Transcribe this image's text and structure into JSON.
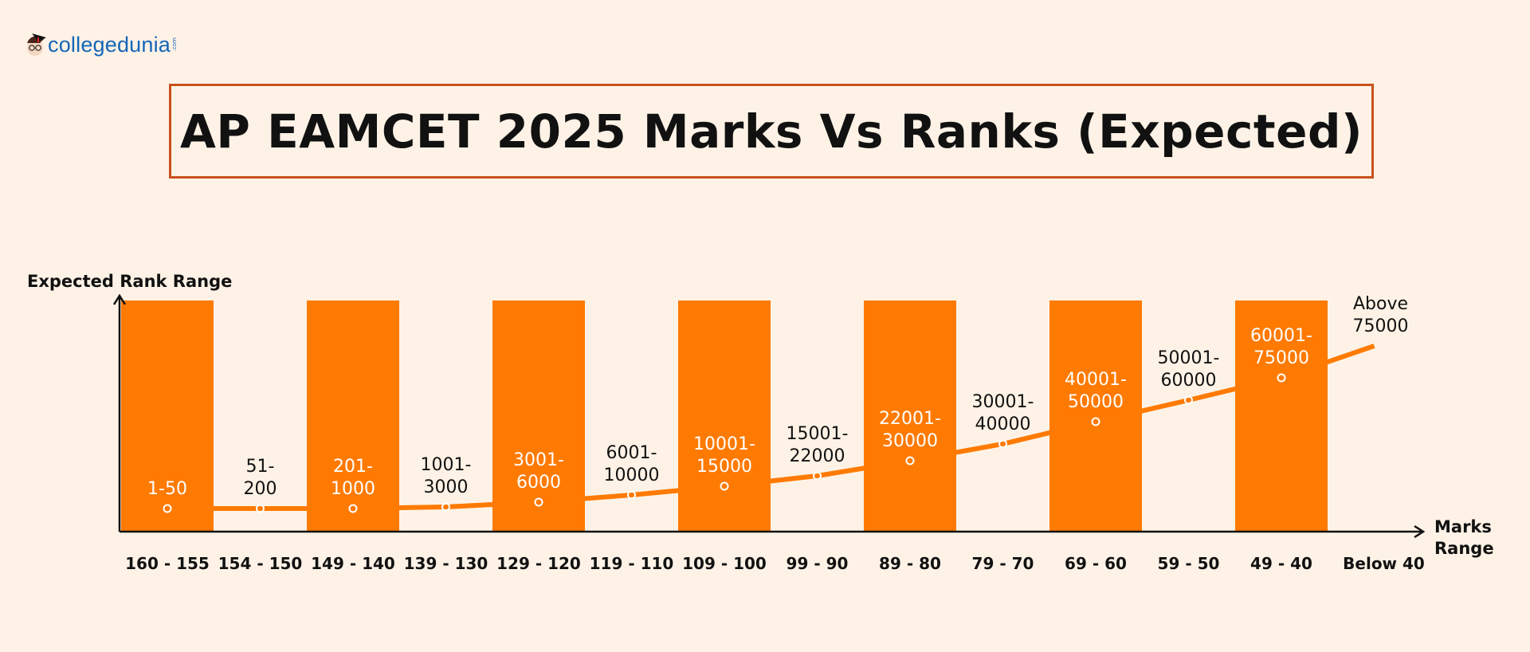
{
  "logo": {
    "text": "collegedunia",
    "suffix": ".com"
  },
  "chart_data": {
    "type": "bar+line",
    "title": "AP EAMCET 2025 Marks Vs Ranks (Expected)",
    "ylabel": "Expected Rank Range",
    "xlabel": "Marks Range",
    "categories": [
      "160 - 155",
      "154 - 150",
      "149 - 140",
      "139 - 130",
      "129 - 120",
      "119 - 110",
      "109 - 100",
      "99 - 90",
      "89 - 80",
      "79 - 70",
      "69 - 60",
      "59 - 50",
      "49 - 40",
      "Below 40"
    ],
    "rank_ranges": [
      "1-50",
      "51-\n200",
      "201-\n1000",
      "1001-\n3000",
      "3001-\n6000",
      "6001-\n10000",
      "10001-\n15000",
      "15001-\n22000",
      "22001-\n30000",
      "30001-\n40000",
      "40001-\n50000",
      "50001-\n60000",
      "60001-\n75000",
      "Above\n75000"
    ],
    "grid": false,
    "colors": {
      "bar": "#ff7a00",
      "line": "#ff7a00",
      "title_border": "#c9501c",
      "background": "#fef2e6"
    }
  }
}
